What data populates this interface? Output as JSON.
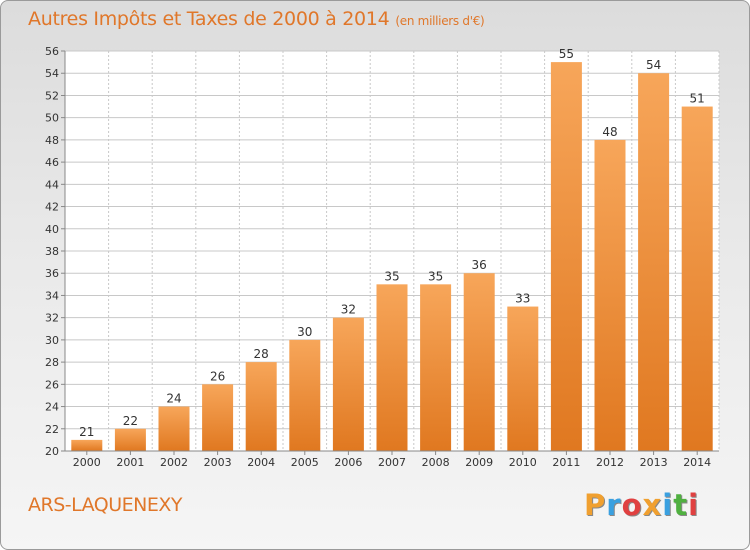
{
  "title": "Autres Impôts et Taxes de 2000 à 2014",
  "unit_label": "(en milliers d'€)",
  "commune": "ARS-LAQUENEXY",
  "logo": {
    "letters": [
      "P",
      "r",
      "o",
      "x",
      "i",
      "t",
      "i"
    ],
    "colors": [
      "#f0a030",
      "#3aa0e0",
      "#e04040",
      "#f0a030",
      "#3aa0e0",
      "#50b040",
      "#e04040"
    ]
  },
  "colors": {
    "title": "#e0772a",
    "bar_light": "#f7a65a",
    "bar_dark": "#e07820",
    "grid": "#c8c8c8"
  },
  "chart_data": {
    "type": "bar",
    "title": "Autres Impôts et Taxes de 2000 à 2014",
    "xlabel": "",
    "ylabel": "",
    "categories": [
      "2000",
      "2001",
      "2002",
      "2003",
      "2004",
      "2005",
      "2006",
      "2007",
      "2008",
      "2009",
      "2010",
      "2011",
      "2012",
      "2013",
      "2014"
    ],
    "values": [
      21,
      22,
      24,
      26,
      28,
      30,
      32,
      35,
      35,
      36,
      33,
      55,
      48,
      54,
      51
    ],
    "ylim": [
      20,
      56
    ],
    "yticks": [
      20,
      22,
      24,
      26,
      28,
      30,
      32,
      34,
      36,
      38,
      40,
      42,
      44,
      46,
      48,
      50,
      52,
      54,
      56
    ],
    "grid": true
  }
}
